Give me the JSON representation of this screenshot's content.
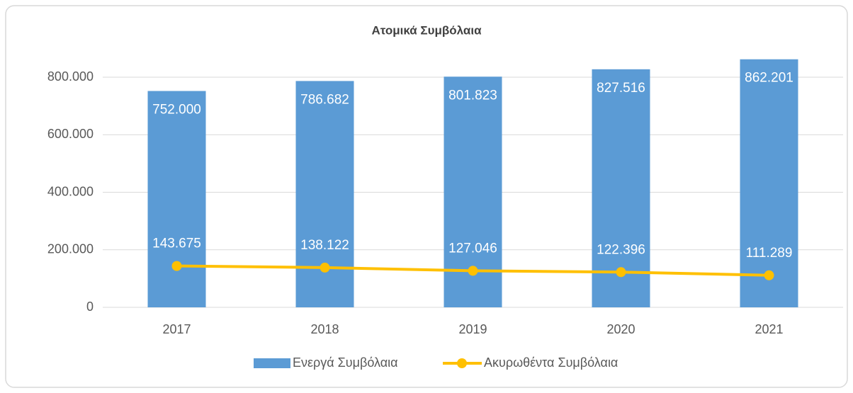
{
  "chart_data": {
    "type": "bar",
    "title": "Ατομικά Συμβόλαια",
    "categories": [
      "2017",
      "2018",
      "2019",
      "2020",
      "2021"
    ],
    "series": [
      {
        "name": "Ενεργά Συμβόλαια",
        "type": "bar",
        "color": "#5b9bd5",
        "values": [
          752000,
          786682,
          801823,
          827516,
          862201
        ],
        "value_labels": [
          "752.000",
          "786.682",
          "801.823",
          "827.516",
          "862.201"
        ]
      },
      {
        "name": "Ακυρωθέντα Συμβόλαια",
        "type": "line",
        "color": "#ffc000",
        "values": [
          143675,
          138122,
          127046,
          122396,
          111289
        ],
        "value_labels": [
          "143.675",
          "138.122",
          "127.046",
          "122.396",
          "111.289"
        ]
      }
    ],
    "ylim": [
      0,
      870000
    ],
    "yticks": [
      0,
      {
        "value": 200000,
        "label": "200.000"
      },
      {
        "value": 400000,
        "label": "400.000"
      },
      {
        "value": 600000,
        "label": "600.000"
      },
      {
        "value": 800000,
        "label": "800.000"
      }
    ],
    "grid": true,
    "legend": "bottom"
  }
}
